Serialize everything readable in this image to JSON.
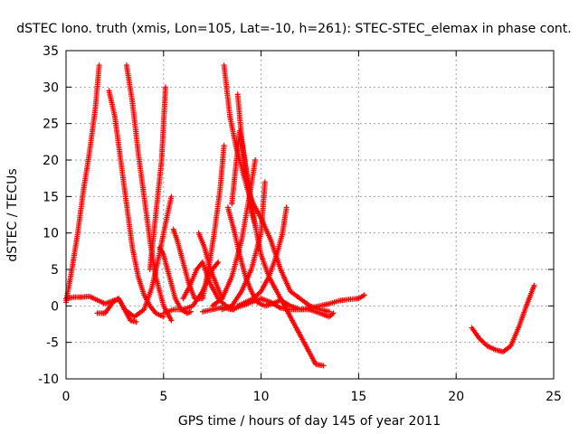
{
  "chart_data": {
    "type": "scatter",
    "title": "dSTEC Iono. truth (xmis, Lon=105, Lat=-10, h=261): STEC-STEC_elemax in phase cont.",
    "xlabel": "GPS time / hours of day 145 of year 2011",
    "ylabel": "dSTEC  / TECUs",
    "xlim": [
      0,
      25
    ],
    "ylim": [
      -10,
      35
    ],
    "xticks": [
      0,
      5,
      10,
      15,
      20,
      25
    ],
    "yticks": [
      -10,
      -5,
      0,
      5,
      10,
      15,
      20,
      25,
      30,
      35
    ],
    "grid": true,
    "legend": "none",
    "marker": "+",
    "color": "#ff0000",
    "series": [
      {
        "x": [
          0.0,
          0.3,
          0.6,
          0.9,
          1.2,
          1.5,
          1.7
        ],
        "y": [
          0.5,
          5,
          10,
          16,
          21,
          27,
          33
        ]
      },
      {
        "x": [
          0.0,
          0.4,
          0.8,
          1.2,
          1.6,
          2.0,
          2.4,
          2.7,
          3.0,
          3.3,
          3.6
        ],
        "y": [
          1.0,
          1.2,
          1.2,
          1.3,
          0.8,
          0.3,
          0.7,
          1.0,
          -0.5,
          -2.0,
          -2.2
        ]
      },
      {
        "x": [
          1.6,
          2.0,
          2.4,
          2.7,
          3.0,
          3.5,
          4.0,
          4.4,
          4.7,
          5.0,
          5.4
        ],
        "y": [
          -1.0,
          -1.0,
          0.5,
          1.0,
          -0.5,
          -1.5,
          -0.5,
          2.5,
          6.0,
          10.0,
          15.0
        ]
      },
      {
        "x": [
          2.2,
          2.5,
          2.8,
          3.1,
          3.4,
          3.7,
          4.0,
          4.3,
          4.6,
          5.0
        ],
        "y": [
          29.5,
          26,
          20,
          14,
          8,
          4,
          1.5,
          0,
          -1,
          -1.5
        ]
      },
      {
        "x": [
          3.1,
          3.4,
          3.7,
          4.0,
          4.3,
          4.6,
          5.0,
          5.4
        ],
        "y": [
          33,
          28,
          21,
          15,
          9,
          4,
          0,
          -2
        ]
      },
      {
        "x": [
          4.3,
          4.5,
          4.7,
          4.9,
          5.0,
          5.1
        ],
        "y": [
          5,
          10,
          15,
          20,
          25,
          30
        ]
      },
      {
        "x": [
          4.8,
          5.0,
          5.3,
          5.6,
          5.9,
          6.2,
          6.4
        ],
        "y": [
          8,
          7,
          4,
          1,
          -0.5,
          -1,
          -0.8
        ]
      },
      {
        "x": [
          5.5,
          5.7,
          6.0,
          6.3,
          6.6,
          7.0,
          7.3,
          7.6,
          7.9,
          8.1
        ],
        "y": [
          10.5,
          9,
          6,
          3,
          1,
          1,
          5,
          10,
          16,
          22
        ]
      },
      {
        "x": [
          5.0,
          5.5,
          6.0,
          6.5,
          7.0,
          7.5,
          7.8
        ],
        "y": [
          -1.0,
          -0.5,
          -0.5,
          0,
          2,
          5,
          6
        ]
      },
      {
        "x": [
          6.0,
          6.3,
          6.7,
          7.0,
          7.4,
          7.8,
          8.2,
          8.6
        ],
        "y": [
          1,
          2.5,
          5,
          6,
          3,
          1,
          0,
          -0.5
        ]
      },
      {
        "x": [
          6.8,
          7.1,
          7.4,
          7.7,
          8.0
        ],
        "y": [
          10,
          8,
          5,
          3,
          1
        ]
      },
      {
        "x": [
          7.0,
          7.5,
          8.0,
          8.5,
          9.0,
          9.5,
          10.0,
          10.5,
          11.0,
          11.5,
          12.0,
          12.5,
          13.0,
          13.5,
          14.0,
          14.5,
          15.0,
          15.3
        ],
        "y": [
          -0.8,
          -0.5,
          -0.2,
          -0.5,
          0,
          0.5,
          1,
          0.5,
          -0.3,
          -0.5,
          -0.5,
          -0.3,
          0,
          0.3,
          0.7,
          0.9,
          1.0,
          1.5
        ]
      },
      {
        "x": [
          8.1,
          8.4,
          8.7,
          9.0,
          9.3,
          9.6,
          10.0,
          10.5,
          11.0,
          11.5,
          12.0,
          12.5,
          13.0,
          13.5
        ],
        "y": [
          33,
          26,
          22,
          19,
          16,
          14,
          12,
          9,
          5,
          2,
          1,
          0,
          -0.5,
          -0.8
        ]
      },
      {
        "x": [
          8.3,
          8.6,
          8.9,
          9.2,
          9.5,
          9.8,
          10.2,
          10.6,
          11.0,
          11.5,
          12.0,
          12.5,
          13.0,
          13.5,
          13.7
        ],
        "y": [
          13.5,
          10.5,
          7,
          4,
          2,
          0.5,
          0,
          0.3,
          0.8,
          0,
          -0.5,
          -0.5,
          -1,
          -1.5,
          -1.0
        ]
      },
      {
        "x": [
          8.5,
          8.7,
          8.9,
          9.1,
          9.4,
          9.7,
          10.0,
          10.4,
          10.8,
          11.2,
          11.6,
          12.0,
          12.4,
          12.8,
          13.2
        ],
        "y": [
          14,
          19,
          24,
          21,
          16,
          11,
          7,
          4,
          2,
          0,
          -2,
          -4,
          -6,
          -8,
          -8.2
        ]
      },
      {
        "x": [
          8.8,
          9.0,
          9.3,
          9.5,
          9.7
        ],
        "y": [
          29,
          23,
          17,
          13,
          11
        ]
      },
      {
        "x": [
          7.5,
          8.0,
          8.5,
          9.0,
          9.4,
          9.7
        ],
        "y": [
          0,
          1,
          4,
          9,
          15,
          20
        ]
      },
      {
        "x": [
          8.0,
          8.5,
          9.0,
          9.5,
          10.0,
          10.2
        ],
        "y": [
          -0.5,
          0,
          2,
          5,
          10,
          17
        ]
      },
      {
        "x": [
          8.8,
          9.2,
          9.6,
          10.0,
          10.4,
          10.8,
          11.1,
          11.3
        ],
        "y": [
          0,
          0.5,
          1,
          2,
          4,
          7,
          10,
          13.5
        ]
      },
      {
        "x": [
          20.8,
          21.2,
          21.6,
          22.0,
          22.4,
          22.8,
          23.2,
          23.6,
          24.0
        ],
        "y": [
          -3,
          -4.5,
          -5.5,
          -6,
          -6.3,
          -5.5,
          -3,
          0,
          2.8
        ]
      }
    ]
  }
}
